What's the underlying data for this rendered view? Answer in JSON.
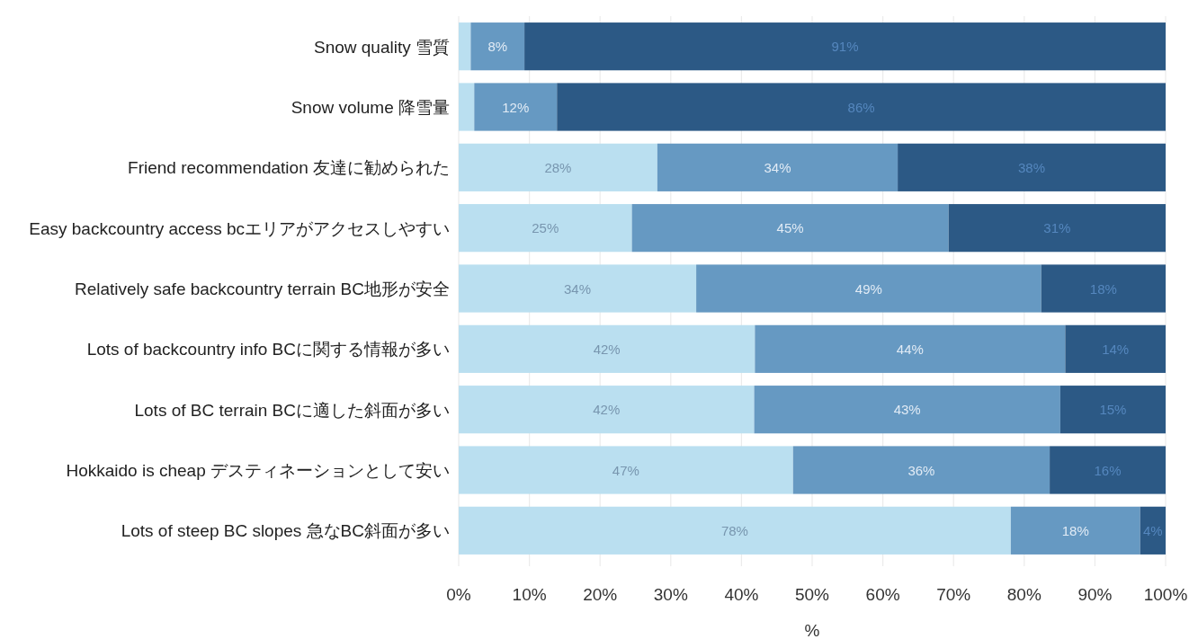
{
  "chart_data": {
    "type": "bar",
    "orientation": "horizontal",
    "stacked": true,
    "xlabel": "%",
    "categories": [
      "Snow quality 雪質",
      "Snow volume 降雪量",
      "Friend recommendation 友達に勧められた",
      "Easy backcountry access bcエリアがアクセスしやすい",
      "Relatively safe backcountry terrain BC地形が安全",
      "Lots of backcountry info BCに関する情報が多い",
      "Lots of BC terrain BCに適した斜面が多い",
      "Hokkaido is cheap デスティネーションとして安い",
      "Lots of steep BC slopes 急なBC斜面が多い"
    ],
    "series": [
      {
        "color": "#badff0",
        "values": [
          1.7,
          2.2,
          28.1,
          24.5,
          33.6,
          41.9,
          41.8,
          47.3,
          78.1
        ],
        "value_labels": [
          null,
          null,
          "28%",
          "25%",
          "34%",
          "42%",
          "42%",
          "47%",
          "78%"
        ]
      },
      {
        "color": "#6699c2",
        "values": [
          7.6,
          11.7,
          34.0,
          44.8,
          48.8,
          43.9,
          43.3,
          36.3,
          18.3
        ],
        "value_labels": [
          "8%",
          "12%",
          "34%",
          "45%",
          "49%",
          "44%",
          "43%",
          "36%",
          "18%"
        ]
      },
      {
        "color": "#2c5985",
        "values": [
          90.7,
          86.1,
          37.9,
          30.7,
          17.6,
          14.2,
          14.9,
          16.4,
          3.6
        ],
        "value_labels": [
          "91%",
          "86%",
          "38%",
          "31%",
          "18%",
          "14%",
          "15%",
          "16%",
          "4%"
        ]
      }
    ],
    "xlim": [
      0,
      100
    ],
    "xticks": [
      {
        "value": 0,
        "label": "0%"
      },
      {
        "value": 10,
        "label": "10%"
      },
      {
        "value": 20,
        "label": "20%"
      },
      {
        "value": 30,
        "label": "30%"
      },
      {
        "value": 40,
        "label": "40%"
      },
      {
        "value": 50,
        "label": "50%"
      },
      {
        "value": 60,
        "label": "60%"
      },
      {
        "value": 70,
        "label": "70%"
      },
      {
        "value": 80,
        "label": "80%"
      },
      {
        "value": 90,
        "label": "90%"
      },
      {
        "value": 100,
        "label": "100%"
      }
    ],
    "grid": "x"
  }
}
